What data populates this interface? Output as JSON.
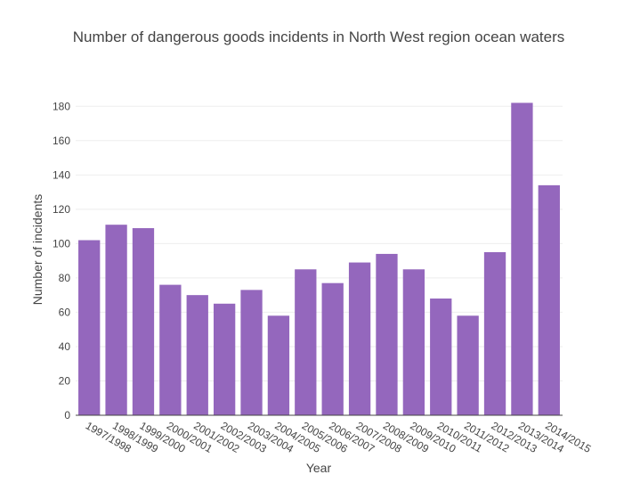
{
  "chart_data": {
    "type": "bar",
    "title": "Number of dangerous goods incidents in North West region ocean waters",
    "xlabel": "Year",
    "ylabel": "Number of incidents",
    "ylim": [
      0,
      190
    ],
    "yticks": [
      0,
      20,
      40,
      60,
      80,
      100,
      120,
      140,
      160,
      180
    ],
    "grid": true,
    "legend": "none",
    "bar_color": "#9467bd",
    "categories": [
      "1997/1998",
      "1998/1999",
      "1999/2000",
      "2000/2001",
      "2001/2002",
      "2002/2003",
      "2003/2004",
      "2004/2005",
      "2005/2006",
      "2006/2007",
      "2007/2008",
      "2008/2009",
      "2009/2010",
      "2010/2011",
      "2011/2012",
      "2012/2013",
      "2013/2014",
      "2014/2015"
    ],
    "values": [
      102,
      111,
      109,
      76,
      70,
      65,
      73,
      58,
      85,
      77,
      89,
      94,
      85,
      68,
      58,
      95,
      182,
      134
    ]
  }
}
